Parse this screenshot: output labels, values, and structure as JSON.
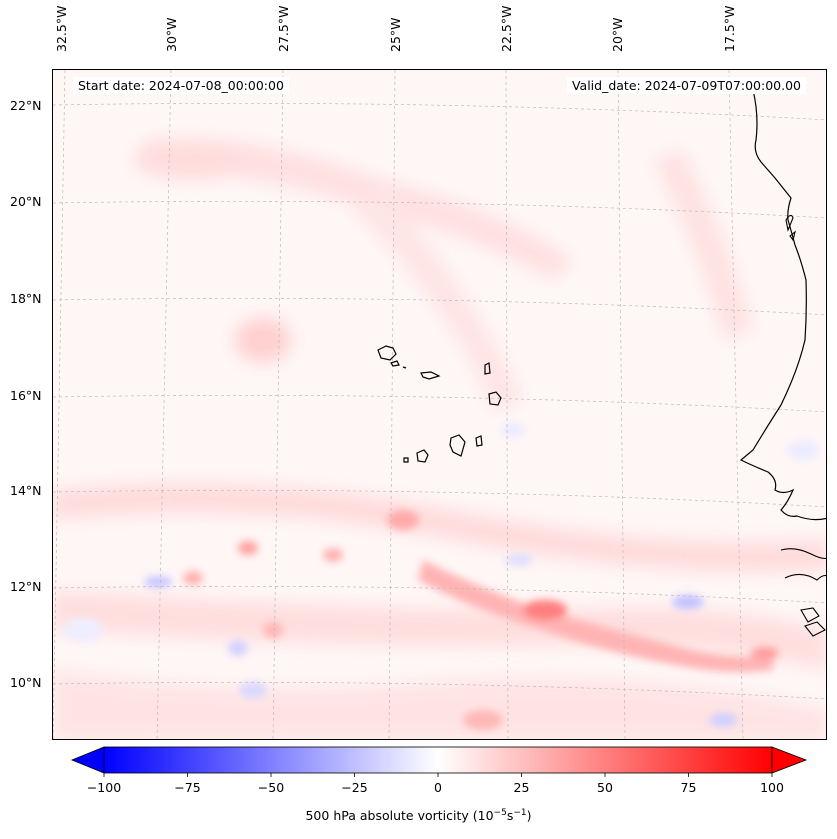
{
  "map": {
    "start_date": "Start date: 2024-07-08_00:00:00",
    "valid_date": "Valid_date: 2024-07-09T07:00:00.00",
    "lon_labels": [
      "32.5°W",
      "30°W",
      "27.5°W",
      "25°W",
      "22.5°W",
      "20°W",
      "17.5°W"
    ],
    "lat_labels": [
      "22°N",
      "20°N",
      "18°N",
      "16°N",
      "14°N",
      "12°N",
      "10°N"
    ],
    "colorbar": {
      "label": "500 hPa absolute vorticity (10",
      "label_exp1": "−5",
      "label_mid": "s",
      "label_exp2": "−1",
      "label_end": ")",
      "ticks": [
        "−100",
        "−75",
        "−50",
        "−25",
        "0",
        "25",
        "50",
        "75",
        "100"
      ],
      "min_color": "#0000ff",
      "mid_color": "#ffffff",
      "max_color": "#ff0000"
    },
    "projection_note_colors": {
      "coastline": "#000000",
      "gridline": "#bbbbbb"
    }
  }
}
